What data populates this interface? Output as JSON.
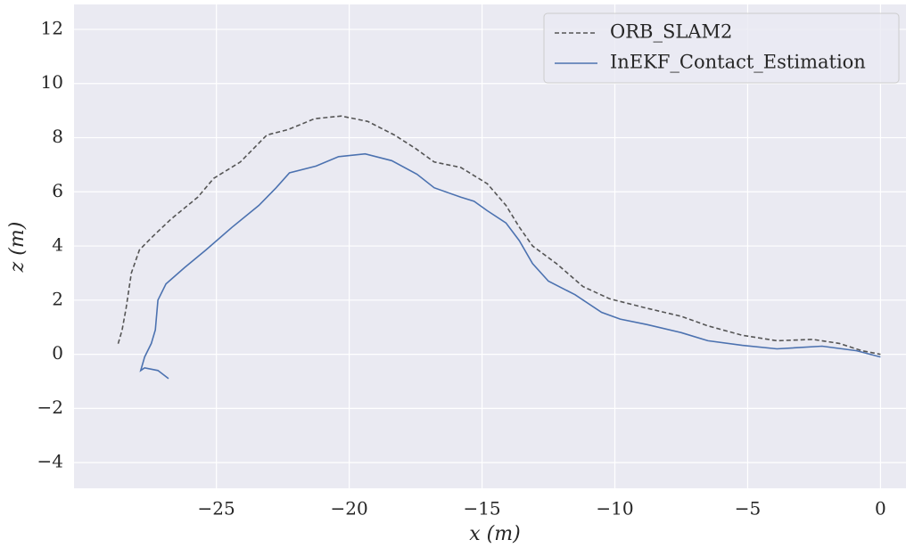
{
  "chart_data": {
    "type": "line",
    "xlabel": "x (m)",
    "ylabel": "z (m)",
    "xlim": [
      -30.36,
      0.96
    ],
    "ylim": [
      -4.95,
      12.92
    ],
    "xticks": [
      {
        "value": -25,
        "label": "−25"
      },
      {
        "value": -20,
        "label": "−20"
      },
      {
        "value": -15,
        "label": "−15"
      },
      {
        "value": -10,
        "label": "−10"
      },
      {
        "value": -5,
        "label": "−5"
      },
      0
    ],
    "yticks": [
      {
        "value": -4,
        "label": "−4"
      },
      {
        "value": -2,
        "label": "−2"
      },
      0,
      2,
      4,
      6,
      8,
      10,
      12
    ],
    "grid": true,
    "legend": "upper right",
    "series": [
      {
        "name": "ORB_SLAM2",
        "color": "#555555",
        "linestyle": "dashed",
        "x": [
          -28.7,
          -28.55,
          -28.4,
          -28.2,
          -27.9,
          -27.4,
          -26.7,
          -25.7,
          -25.1,
          -24.1,
          -23.1,
          -22.3,
          -21.3,
          -20.3,
          -19.3,
          -18.3,
          -17.5,
          -16.8,
          -15.8,
          -14.8,
          -14.1,
          -13.6,
          -13.1,
          -12.2,
          -11.2,
          -10.2,
          -8.8,
          -7.5,
          -6.5,
          -5.2,
          -3.9,
          -2.55,
          -1.55,
          -0.7,
          0
        ],
        "values": [
          0.39,
          0.89,
          1.7,
          3.0,
          3.85,
          4.35,
          5.0,
          5.8,
          6.5,
          7.1,
          8.1,
          8.3,
          8.7,
          8.8,
          8.6,
          8.1,
          7.6,
          7.1,
          6.9,
          6.3,
          5.5,
          4.7,
          4.0,
          3.35,
          2.5,
          2.05,
          1.7,
          1.4,
          1.05,
          0.7,
          0.5,
          0.55,
          0.4,
          0.13,
          0
        ]
      },
      {
        "name": "InEKF_Contact_Estimation",
        "color": "#4c72b0",
        "linestyle": "solid",
        "x": [
          -26.8,
          -27.2,
          -27.7,
          -27.85,
          -27.7,
          -27.45,
          -27.3,
          -27.2,
          -26.9,
          -26.2,
          -25.4,
          -24.4,
          -23.4,
          -22.75,
          -22.25,
          -21.25,
          -20.4,
          -19.4,
          -18.4,
          -17.45,
          -16.8,
          -15.8,
          -15.3,
          -14.8,
          -14.1,
          -13.6,
          -13.1,
          -12.5,
          -11.5,
          -10.5,
          -9.8,
          -8.8,
          -7.5,
          -6.5,
          -5.2,
          -3.9,
          -2.2,
          -0.9,
          0
        ],
        "values": [
          -0.9,
          -0.6,
          -0.5,
          -0.6,
          -0.1,
          0.4,
          0.9,
          2.0,
          2.6,
          3.2,
          3.85,
          4.7,
          5.5,
          6.15,
          6.7,
          6.95,
          7.3,
          7.4,
          7.15,
          6.65,
          6.15,
          5.8,
          5.65,
          5.3,
          4.85,
          4.2,
          3.35,
          2.7,
          2.2,
          1.55,
          1.3,
          1.1,
          0.8,
          0.5,
          0.33,
          0.2,
          0.3,
          0.13,
          -0.1
        ]
      }
    ]
  }
}
